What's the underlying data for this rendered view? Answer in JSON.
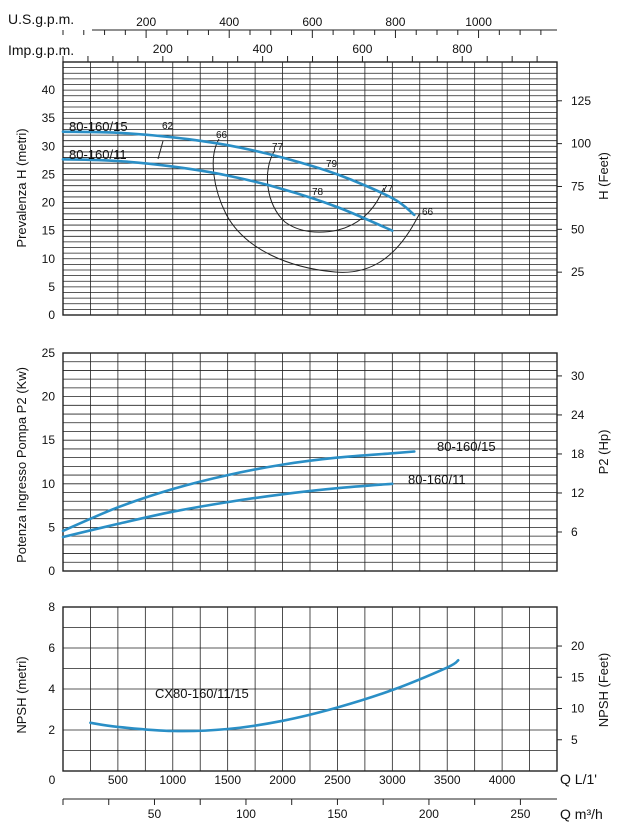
{
  "colors": {
    "curve": "#2a8fc6",
    "grid": "#222222",
    "efficiency": "#222222",
    "text": "#111111"
  },
  "top_axes": {
    "usgpm_label": "U.S.g.p.m.",
    "usgpm_ticks": [
      "200",
      "400",
      "600",
      "800",
      "1000"
    ],
    "impgpm_label": "Imp.g.p.m.",
    "impgpm_ticks": [
      "200",
      "400",
      "600",
      "800"
    ]
  },
  "bottom_axes": {
    "q_lmin_label": "Q L/1'",
    "q_lmin_ticks": [
      "0",
      "500",
      "1000",
      "1500",
      "2000",
      "2500",
      "3000",
      "3500",
      "4000"
    ],
    "q_m3h_label": "Q m³/h",
    "q_m3h_ticks": [
      "50",
      "100",
      "150",
      "200",
      "250"
    ]
  },
  "chart_data": [
    {
      "type": "line",
      "ylabel": "Prevalenza H (metri)",
      "y2label": "H (Feet)",
      "xlim": [
        0,
        4500
      ],
      "ylim": [
        0,
        45
      ],
      "y_ticks": [
        0,
        5,
        10,
        15,
        20,
        25,
        30,
        35,
        40
      ],
      "y2_ticks": [
        25,
        50,
        75,
        100,
        125
      ],
      "grid": true,
      "series": [
        {
          "name": "80-160/15",
          "x": [
            0,
            500,
            1000,
            1500,
            2000,
            2500,
            3000,
            3200
          ],
          "y": [
            32.6,
            32.4,
            31.6,
            30.2,
            28.0,
            25.0,
            20.8,
            17.8
          ]
        },
        {
          "name": "80-160/11",
          "x": [
            0,
            500,
            1000,
            1500,
            2000,
            2500,
            3000
          ],
          "y": [
            27.7,
            27.4,
            26.4,
            24.8,
            22.4,
            19.2,
            15.0
          ]
        }
      ],
      "efficiency_labels": [
        "62",
        "66",
        "77",
        "79",
        "78",
        "77",
        "66"
      ]
    },
    {
      "type": "line",
      "ylabel": "Potenza Ingresso Pompa P2 (Kw)",
      "y2label": "P2 (Hp)",
      "xlim": [
        0,
        4500
      ],
      "ylim": [
        0,
        25
      ],
      "y_ticks": [
        0,
        5,
        10,
        15,
        20,
        25
      ],
      "y2_ticks": [
        6,
        12,
        18,
        24,
        30
      ],
      "grid": true,
      "series": [
        {
          "name": "80-160/15",
          "x": [
            0,
            500,
            1000,
            1500,
            2000,
            2500,
            3000,
            3200
          ],
          "y": [
            4.6,
            7.3,
            9.4,
            11.0,
            12.2,
            13.0,
            13.5,
            13.7
          ]
        },
        {
          "name": "80-160/11",
          "x": [
            0,
            500,
            1000,
            1500,
            2000,
            2500,
            3000
          ],
          "y": [
            3.9,
            5.4,
            6.8,
            7.9,
            8.8,
            9.5,
            10.0
          ]
        }
      ]
    },
    {
      "type": "line",
      "ylabel": "NPSH (metri)",
      "y2label": "NPSH (Feet)",
      "xlim": [
        0,
        4500
      ],
      "ylim": [
        0,
        8
      ],
      "y_ticks": [
        2,
        4,
        6,
        8
      ],
      "y2_ticks": [
        5,
        10,
        15,
        20
      ],
      "grid": true,
      "series": [
        {
          "name": "CX80-160/11/15",
          "x": [
            250,
            500,
            1000,
            1500,
            2000,
            2500,
            3000,
            3500,
            3600
          ],
          "y": [
            2.35,
            2.15,
            1.95,
            2.05,
            2.45,
            3.1,
            3.95,
            5.05,
            5.4
          ]
        }
      ]
    }
  ]
}
